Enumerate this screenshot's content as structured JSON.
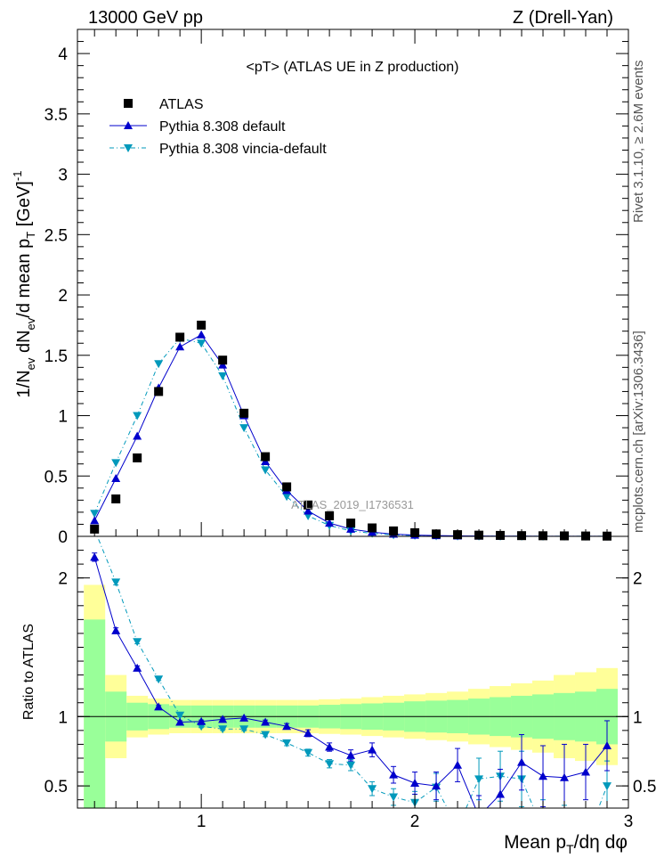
{
  "header": {
    "left": "13000 GeV pp",
    "right": "Z (Drell-Yan)"
  },
  "side_labels": {
    "rivet": "Rivet 3.1.10, ≥ 2.6M events",
    "mcplots": "mcplots.cern.ch [arXiv:1306.3436]"
  },
  "chart_data": {
    "type": "scatter",
    "title": "<pT> (ATLAS UE in Z production)",
    "watermark": "ATLAS_2019_I1736531",
    "xlabel_parts": {
      "a": "Mean p",
      "sub": "T",
      "b": "/dη dφ"
    },
    "ylabel_parts": {
      "a": "1/N",
      "s1": "ev",
      "b": " dN",
      "s2": "ev",
      "c": "/d mean p",
      "s3": "T",
      "d": " [GeV]",
      "sup": "-1"
    },
    "ratio_ylabel": "Ratio to ATLAS",
    "xlim": [
      0.42,
      3.0
    ],
    "ylim_main": [
      0,
      4.2
    ],
    "ylim_ratio": [
      0.34,
      2.3
    ],
    "x_ticks": [
      "1",
      "2",
      "3"
    ],
    "y_ticks_main": [
      "0",
      "0.5",
      "1",
      "1.5",
      "2",
      "2.5",
      "3",
      "3.5",
      "4"
    ],
    "y_ticks_ratio": [
      "0.5",
      "1",
      "2"
    ],
    "legend": [
      "ATLAS",
      "Pythia 8.308 default",
      "Pythia 8.308 vincia-default"
    ],
    "bins": [
      [
        0.45,
        0.55
      ],
      [
        0.55,
        0.65
      ],
      [
        0.65,
        0.75
      ],
      [
        0.75,
        0.85
      ],
      [
        0.85,
        0.95
      ],
      [
        0.95,
        1.05
      ],
      [
        1.05,
        1.15
      ],
      [
        1.15,
        1.25
      ],
      [
        1.25,
        1.35
      ],
      [
        1.35,
        1.45
      ],
      [
        1.45,
        1.55
      ],
      [
        1.55,
        1.65
      ],
      [
        1.65,
        1.75
      ],
      [
        1.75,
        1.85
      ],
      [
        1.85,
        1.95
      ],
      [
        1.95,
        2.05
      ],
      [
        2.05,
        2.15
      ],
      [
        2.15,
        2.25
      ],
      [
        2.25,
        2.35
      ],
      [
        2.35,
        2.45
      ],
      [
        2.45,
        2.55
      ],
      [
        2.55,
        2.65
      ],
      [
        2.65,
        2.75
      ],
      [
        2.75,
        2.85
      ],
      [
        2.85,
        2.95
      ]
    ],
    "x": [
      0.5,
      0.6,
      0.7,
      0.8,
      0.9,
      1.0,
      1.1,
      1.2,
      1.3,
      1.4,
      1.5,
      1.6,
      1.7,
      1.8,
      1.9,
      2.0,
      2.1,
      2.2,
      2.3,
      2.4,
      2.5,
      2.6,
      2.7,
      2.8,
      2.9
    ],
    "series": [
      {
        "name": "ATLAS",
        "color": "#000000",
        "values": [
          0.06,
          0.31,
          0.65,
          1.2,
          1.65,
          1.75,
          1.46,
          1.02,
          0.66,
          0.41,
          0.26,
          0.17,
          0.11,
          0.07,
          0.045,
          0.03,
          0.02,
          0.014,
          0.01,
          0.008,
          0.006,
          0.005,
          0.004,
          0.003,
          0.002
        ]
      },
      {
        "name": "Pythia 8.308 default",
        "color": "#0000cc",
        "values": [
          0.13,
          0.48,
          0.83,
          1.23,
          1.57,
          1.67,
          1.42,
          1.0,
          0.62,
          0.38,
          0.21,
          0.11,
          0.06,
          0.035,
          0.018,
          0.01,
          0.006,
          0.004,
          0.003,
          0.002,
          0.002,
          0.001,
          0.001,
          0.001,
          0.001
        ]
      },
      {
        "name": "Pythia 8.308 vincia-default",
        "color": "#0099bb",
        "values": [
          0.19,
          0.61,
          1.0,
          1.43,
          1.64,
          1.6,
          1.33,
          0.9,
          0.55,
          0.33,
          0.17,
          0.09,
          0.045,
          0.025,
          0.012,
          0.007,
          0.004,
          0.002,
          0.002,
          0.001,
          0.001,
          0.001,
          0.001,
          0.001,
          0.001
        ]
      }
    ],
    "ratio_series": [
      {
        "name": "Pythia 8.308 default",
        "color": "#0000cc",
        "values": [
          2.15,
          1.62,
          1.35,
          1.07,
          0.96,
          0.965,
          0.98,
          0.99,
          0.96,
          0.93,
          0.88,
          0.78,
          0.72,
          0.76,
          0.58,
          0.52,
          0.5,
          0.65,
          0.28,
          0.44,
          0.67,
          0.57,
          0.56,
          0.6,
          0.79
        ],
        "errors": [
          0.03,
          0.02,
          0.015,
          0.01,
          0.01,
          0.01,
          0.01,
          0.012,
          0.015,
          0.02,
          0.025,
          0.03,
          0.04,
          0.05,
          0.06,
          0.08,
          0.1,
          0.12,
          0.15,
          0.18,
          0.2,
          0.22,
          0.24,
          0.2,
          0.18
        ]
      },
      {
        "name": "Pythia 8.308 vincia-default",
        "color": "#0099bb",
        "values": [
          2.35,
          1.97,
          1.54,
          1.27,
          1.01,
          0.93,
          0.91,
          0.91,
          0.87,
          0.81,
          0.74,
          0.66,
          0.65,
          0.48,
          0.42,
          0.38,
          0.49,
          0.2,
          0.55,
          0.57,
          0.55,
          0.18,
          0.12,
          0.1,
          0.5
        ],
        "errors": [
          0.03,
          0.02,
          0.015,
          0.01,
          0.01,
          0.01,
          0.01,
          0.012,
          0.015,
          0.02,
          0.025,
          0.03,
          0.04,
          0.05,
          0.06,
          0.08,
          0.1,
          0.12,
          0.15,
          0.18,
          0.2,
          0.22,
          0.24,
          0.2,
          0.18
        ]
      }
    ],
    "uncertainty_bands": {
      "stat_color": "#99ff99",
      "total_color": "#ffff99",
      "stat_halfwidth": [
        0.7,
        0.18,
        0.1,
        0.09,
        0.08,
        0.08,
        0.08,
        0.08,
        0.08,
        0.08,
        0.08,
        0.085,
        0.09,
        0.095,
        0.1,
        0.11,
        0.115,
        0.12,
        0.13,
        0.14,
        0.15,
        0.16,
        0.17,
        0.18,
        0.2
      ],
      "total_halfwidth": [
        0.95,
        0.3,
        0.15,
        0.13,
        0.12,
        0.12,
        0.12,
        0.12,
        0.12,
        0.12,
        0.12,
        0.125,
        0.13,
        0.14,
        0.15,
        0.16,
        0.17,
        0.18,
        0.2,
        0.22,
        0.24,
        0.26,
        0.3,
        0.32,
        0.35
      ]
    }
  }
}
